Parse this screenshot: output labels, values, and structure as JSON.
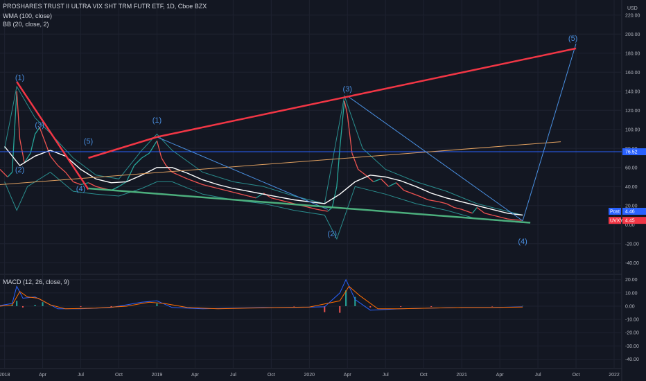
{
  "header": {
    "symbol_line": "PROSHARES TRUST II ULTRA VIX SHT TRM FUTR ETF, 1D, Cboe BZX",
    "wma_label": "WMA (100, close)",
    "bb_label": "BB (20, close, 2)",
    "macd_label": "MACD (12, 26, close, 9)"
  },
  "colors": {
    "background": "#131722",
    "grid": "#1e2230",
    "red_trendline": "#f23645",
    "green_trendline": "#4caf7d",
    "wave_blue": "#4a90e2",
    "orange_line": "#e0a060",
    "wma": "#ffffff",
    "bollinger": "#2a8f8f",
    "price_tag_post": "#2962ff",
    "price_tag_last": "#f23645",
    "hline_tag": "#2962ff"
  },
  "price_axis": {
    "currency": "USD",
    "ticks": [
      "220.00",
      "200.00",
      "180.00",
      "160.00",
      "140.00",
      "120.00",
      "100.00",
      "80.00",
      "60.00",
      "40.00",
      "20.00",
      "0.00",
      "-20.00",
      "-40.00"
    ]
  },
  "macd_axis": {
    "ticks": [
      "20.00",
      "10.00",
      "0.00",
      "-10.00",
      "-20.00",
      "-30.00",
      "-40.00"
    ]
  },
  "time_axis": {
    "labels": [
      "2018",
      "Apr",
      "Jul",
      "Oct",
      "2019",
      "Apr",
      "Jul",
      "Oct",
      "2020",
      "Apr",
      "Jul",
      "Oct",
      "2021",
      "Apr",
      "Jul",
      "Oct",
      "2022"
    ]
  },
  "price_tags": {
    "hline_value": "76.52",
    "post_label": "Post",
    "post_value": "4.46",
    "last_label": "UVXY",
    "last_value": "4.45"
  },
  "wave_labels": [
    {
      "text": "(1)",
      "t": 2018.1,
      "p": 152
    },
    {
      "text": "(2)",
      "t": 2018.1,
      "p": 55
    },
    {
      "text": "(3)",
      "t": 2018.23,
      "p": 102
    },
    {
      "text": "(4)",
      "t": 2018.5,
      "p": 35
    },
    {
      "text": "(5)",
      "t": 2018.55,
      "p": 85
    },
    {
      "text": "(1)",
      "t": 2019.0,
      "p": 107
    },
    {
      "text": "(2)",
      "t": 2020.15,
      "p": -12
    },
    {
      "text": "(3)",
      "t": 2020.25,
      "p": 140
    },
    {
      "text": "(4)",
      "t": 2021.4,
      "p": -20
    },
    {
      "text": "(5)",
      "t": 2021.73,
      "p": 193
    }
  ],
  "chart_data": {
    "type": "line",
    "price_range": [
      -50,
      230
    ],
    "macd_range": [
      -45,
      23
    ],
    "time_range": [
      2017.97,
      2022.05
    ],
    "series": [
      {
        "values": [
          [
            2017.97,
            58
          ],
          [
            2018.02,
            50
          ],
          [
            2018.05,
            55
          ],
          [
            2018.08,
            140
          ],
          [
            2018.1,
            90
          ],
          [
            2018.13,
            65
          ],
          [
            2018.17,
            75
          ],
          [
            2018.2,
            95
          ],
          [
            2018.23,
            102
          ],
          [
            2018.27,
            85
          ],
          [
            2018.3,
            72
          ],
          [
            2018.35,
            62
          ],
          [
            2018.4,
            55
          ],
          [
            2018.45,
            45
          ],
          [
            2018.5,
            42
          ],
          [
            2018.55,
            44
          ],
          [
            2018.6,
            40
          ],
          [
            2018.65,
            38
          ],
          [
            2018.7,
            36
          ],
          [
            2018.75,
            40
          ],
          [
            2018.8,
            45
          ],
          [
            2018.85,
            62
          ],
          [
            2018.9,
            70
          ],
          [
            2018.95,
            75
          ],
          [
            2019.0,
            88
          ],
          [
            2019.03,
            70
          ],
          [
            2019.06,
            62
          ],
          [
            2019.1,
            55
          ],
          [
            2019.2,
            48
          ],
          [
            2019.3,
            42
          ],
          [
            2019.4,
            38
          ],
          [
            2019.5,
            34
          ],
          [
            2019.6,
            30
          ],
          [
            2019.65,
            28
          ],
          [
            2019.7,
            33
          ],
          [
            2019.75,
            28
          ],
          [
            2019.85,
            24
          ],
          [
            2019.95,
            20
          ],
          [
            2020.05,
            16
          ],
          [
            2020.12,
            14
          ],
          [
            2020.15,
            18
          ],
          [
            2020.18,
            40
          ],
          [
            2020.2,
            80
          ],
          [
            2020.23,
            130
          ],
          [
            2020.25,
            115
          ],
          [
            2020.28,
            75
          ],
          [
            2020.32,
            58
          ],
          [
            2020.37,
            52
          ],
          [
            2020.42,
            45
          ],
          [
            2020.47,
            48
          ],
          [
            2020.52,
            40
          ],
          [
            2020.57,
            44
          ],
          [
            2020.62,
            36
          ],
          [
            2020.67,
            33
          ],
          [
            2020.72,
            30
          ],
          [
            2020.78,
            26
          ],
          [
            2020.85,
            24
          ],
          [
            2020.9,
            22
          ],
          [
            2020.95,
            18
          ],
          [
            2021.0,
            16
          ],
          [
            2021.07,
            12
          ],
          [
            2021.1,
            18
          ],
          [
            2021.15,
            12
          ],
          [
            2021.2,
            10
          ],
          [
            2021.25,
            8
          ],
          [
            2021.3,
            6
          ],
          [
            2021.35,
            5
          ],
          [
            2021.4,
            4.45
          ]
        ]
      },
      {
        "values": [
          [
            2018.0,
            82
          ],
          [
            2018.1,
            62
          ],
          [
            2018.2,
            72
          ],
          [
            2018.3,
            78
          ],
          [
            2018.4,
            72
          ],
          [
            2018.5,
            58
          ],
          [
            2018.6,
            48
          ],
          [
            2018.7,
            44
          ],
          [
            2018.8,
            45
          ],
          [
            2018.9,
            52
          ],
          [
            2019.0,
            60
          ],
          [
            2019.1,
            60
          ],
          [
            2019.2,
            54
          ],
          [
            2019.3,
            47
          ],
          [
            2019.4,
            42
          ],
          [
            2019.5,
            38
          ],
          [
            2019.6,
            35
          ],
          [
            2019.7,
            32
          ],
          [
            2019.8,
            29
          ],
          [
            2019.9,
            26
          ],
          [
            2020.0,
            24
          ],
          [
            2020.1,
            22
          ],
          [
            2020.2,
            32
          ],
          [
            2020.3,
            45
          ],
          [
            2020.4,
            52
          ],
          [
            2020.5,
            50
          ],
          [
            2020.6,
            46
          ],
          [
            2020.7,
            40
          ],
          [
            2020.8,
            33
          ],
          [
            2020.9,
            28
          ],
          [
            2021.0,
            24
          ],
          [
            2021.1,
            20
          ],
          [
            2021.2,
            16
          ],
          [
            2021.3,
            12
          ],
          [
            2021.4,
            10
          ]
        ]
      }
    ],
    "bollinger_upper": [
      [
        2018.0,
        80
      ],
      [
        2018.08,
        145
      ],
      [
        2018.2,
        112
      ],
      [
        2018.3,
        96
      ],
      [
        2018.45,
        70
      ],
      [
        2018.6,
        52
      ],
      [
        2018.75,
        48
      ],
      [
        2018.9,
        78
      ],
      [
        2019.0,
        95
      ],
      [
        2019.1,
        78
      ],
      [
        2019.3,
        55
      ],
      [
        2019.5,
        45
      ],
      [
        2019.7,
        40
      ],
      [
        2019.9,
        30
      ],
      [
        2020.1,
        22
      ],
      [
        2020.23,
        135
      ],
      [
        2020.35,
        80
      ],
      [
        2020.5,
        58
      ],
      [
        2020.7,
        45
      ],
      [
        2020.9,
        35
      ],
      [
        2021.1,
        22
      ],
      [
        2021.4,
        10
      ]
    ],
    "bollinger_lower": [
      [
        2018.0,
        45
      ],
      [
        2018.08,
        15
      ],
      [
        2018.15,
        40
      ],
      [
        2018.3,
        55
      ],
      [
        2018.45,
        35
      ],
      [
        2018.6,
        32
      ],
      [
        2018.75,
        30
      ],
      [
        2018.9,
        38
      ],
      [
        2019.0,
        45
      ],
      [
        2019.1,
        45
      ],
      [
        2019.3,
        32
      ],
      [
        2019.5,
        26
      ],
      [
        2019.7,
        22
      ],
      [
        2019.9,
        15
      ],
      [
        2020.1,
        10
      ],
      [
        2020.18,
        -15
      ],
      [
        2020.3,
        40
      ],
      [
        2020.5,
        32
      ],
      [
        2020.7,
        22
      ],
      [
        2020.9,
        15
      ],
      [
        2021.1,
        6
      ],
      [
        2021.4,
        2
      ]
    ],
    "macd_line": [
      [
        2017.97,
        0.5
      ],
      [
        2018.05,
        2
      ],
      [
        2018.08,
        15
      ],
      [
        2018.12,
        6
      ],
      [
        2018.2,
        7
      ],
      [
        2018.25,
        4
      ],
      [
        2018.35,
        -2
      ],
      [
        2018.5,
        -2
      ],
      [
        2018.7,
        -1
      ],
      [
        2018.9,
        3
      ],
      [
        2019.0,
        4
      ],
      [
        2019.1,
        -1
      ],
      [
        2019.3,
        -2
      ],
      [
        2019.5,
        -1.5
      ],
      [
        2019.7,
        -1
      ],
      [
        2019.9,
        -1
      ],
      [
        2020.1,
        -0.5
      ],
      [
        2020.2,
        10
      ],
      [
        2020.24,
        20
      ],
      [
        2020.3,
        5
      ],
      [
        2020.4,
        -3
      ],
      [
        2020.6,
        -2
      ],
      [
        2020.8,
        -1.5
      ],
      [
        2021.0,
        -1
      ],
      [
        2021.2,
        -1
      ],
      [
        2021.4,
        -0.5
      ]
    ],
    "signal_line": [
      [
        2017.97,
        0
      ],
      [
        2018.05,
        1
      ],
      [
        2018.1,
        11
      ],
      [
        2018.15,
        7
      ],
      [
        2018.22,
        6
      ],
      [
        2018.3,
        1
      ],
      [
        2018.4,
        -2
      ],
      [
        2018.6,
        -1.5
      ],
      [
        2018.8,
        0
      ],
      [
        2018.95,
        3
      ],
      [
        2019.05,
        2
      ],
      [
        2019.2,
        -1
      ],
      [
        2019.4,
        -2
      ],
      [
        2019.6,
        -1.5
      ],
      [
        2019.8,
        -1
      ],
      [
        2020.0,
        -0.7
      ],
      [
        2020.2,
        4
      ],
      [
        2020.26,
        15
      ],
      [
        2020.33,
        8
      ],
      [
        2020.45,
        -2
      ],
      [
        2020.6,
        -2
      ],
      [
        2020.8,
        -1.5
      ],
      [
        2021.0,
        -1
      ],
      [
        2021.2,
        -1
      ],
      [
        2021.4,
        -0.7
      ]
    ]
  },
  "drawings": {
    "red_lines": [
      {
        "t1": 2018.08,
        "p1": 150,
        "t2": 2018.55,
        "p2": 37
      },
      {
        "t1": 2018.55,
        "p1": 70,
        "t2": 2019.0,
        "p2": 92
      },
      {
        "t1": 2019.0,
        "p1": 92,
        "t2": 2021.75,
        "p2": 185
      }
    ],
    "green_line": {
      "t1": 2018.55,
      "p1": 38,
      "t2": 2021.45,
      "p2": 2
    },
    "blue_thin_lines": [
      {
        "t1": 2019.0,
        "p1": 92,
        "t2": 2020.12,
        "p2": 16
      },
      {
        "t1": 2020.25,
        "p1": 135,
        "t2": 2021.4,
        "p2": 4
      },
      {
        "t1": 2021.4,
        "p1": 4,
        "t2": 2021.75,
        "p2": 190
      }
    ],
    "orange_line": {
      "t1": 2017.97,
      "p1": 42,
      "t2": 2021.65,
      "p2": 87
    },
    "hline": 76.52
  }
}
